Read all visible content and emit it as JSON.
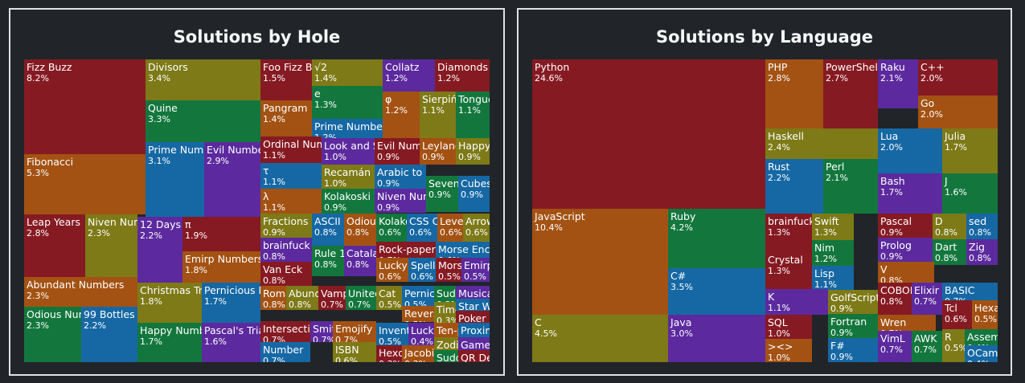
{
  "colors": {
    "red": "#861a22",
    "orange": "#a35213",
    "olive": "#7d7a17",
    "green": "#13773d",
    "blue": "#1668a4",
    "purple": "#5c2a9e"
  },
  "chart_data": [
    {
      "type": "treemap",
      "title": "Solutions by Hole",
      "items": [
        {
          "label": "Fizz Buzz",
          "value": 8.2,
          "pct": "8.2%",
          "color": "red"
        },
        {
          "label": "Fibonacci",
          "value": 5.3,
          "pct": "5.3%",
          "color": "orange"
        },
        {
          "label": "Leap Years",
          "value": 2.8,
          "pct": "2.8%",
          "color": "red"
        },
        {
          "label": "Niven Numbers",
          "value": 2.3,
          "pct": "2.3%",
          "color": "olive"
        },
        {
          "label": "Abundant Numbers",
          "value": 2.3,
          "pct": "2.3%",
          "color": "orange"
        },
        {
          "label": "Odious Numbers",
          "value": 2.3,
          "pct": "2.3%",
          "color": "green"
        },
        {
          "label": "99 Bottles",
          "value": 2.2,
          "pct": "2.2%",
          "color": "blue"
        },
        {
          "label": "Divisors",
          "value": 3.4,
          "pct": "3.4%",
          "color": "olive"
        },
        {
          "label": "Quine",
          "value": 3.3,
          "pct": "3.3%",
          "color": "green"
        },
        {
          "label": "Prime Numbers",
          "value": 3.1,
          "pct": "3.1%",
          "color": "blue"
        },
        {
          "label": "Evil Numbers",
          "value": 2.9,
          "pct": "2.9%",
          "color": "purple"
        },
        {
          "label": "12 Days",
          "value": 2.2,
          "pct": "2.2%",
          "color": "purple"
        },
        {
          "label": "π",
          "value": 1.9,
          "pct": "1.9%",
          "color": "red"
        },
        {
          "label": "Emirp Numbers",
          "value": 1.8,
          "pct": "1.8%",
          "color": "orange"
        },
        {
          "label": "Christmas Trees",
          "value": 1.8,
          "pct": "1.8%",
          "color": "olive"
        },
        {
          "label": "Pernicious Numbers",
          "value": 1.7,
          "pct": "1.7%",
          "color": "blue"
        },
        {
          "label": "Happy Numbers",
          "value": 1.7,
          "pct": "1.7%",
          "color": "green"
        },
        {
          "label": "Pascal's Triangle",
          "value": 1.6,
          "pct": "1.6%",
          "color": "purple"
        },
        {
          "label": "Foo Fizz Buzz",
          "value": 1.5,
          "pct": "1.5%",
          "color": "red"
        },
        {
          "label": "Pangram",
          "value": 1.4,
          "pct": "1.4%",
          "color": "orange"
        },
        {
          "label": "√2",
          "value": 1.4,
          "pct": "1.4%",
          "color": "olive"
        },
        {
          "label": "e",
          "value": 1.3,
          "pct": "1.3%",
          "color": "green"
        },
        {
          "label": "Prime Numbers",
          "value": 1.2,
          "pct": "1.2%",
          "color": "blue"
        },
        {
          "label": "Collatz",
          "value": 1.2,
          "pct": "1.2%",
          "color": "purple"
        },
        {
          "label": "Diamonds",
          "value": 1.2,
          "pct": "1.2%",
          "color": "red"
        },
        {
          "label": "φ",
          "value": 1.2,
          "pct": "1.2%",
          "color": "orange"
        },
        {
          "label": "Sierpiński",
          "value": 1.1,
          "pct": "1.1%",
          "color": "olive"
        },
        {
          "label": "Tongue-twisters",
          "value": 1.1,
          "pct": "1.1%",
          "color": "green"
        },
        {
          "label": "Ordinal Numbers",
          "value": 1.1,
          "pct": "1.1%",
          "color": "red"
        },
        {
          "label": "Look and Say",
          "value": 1.0,
          "pct": "1.0%",
          "color": "purple"
        },
        {
          "label": "Evil Numbers",
          "value": 0.9,
          "pct": "0.9%",
          "color": "red"
        },
        {
          "label": "Leyland",
          "value": 0.9,
          "pct": "0.9%",
          "color": "orange"
        },
        {
          "label": "Happy",
          "value": 0.9,
          "pct": "0.9%",
          "color": "olive"
        },
        {
          "label": "τ",
          "value": 1.1,
          "pct": "1.1%",
          "color": "blue"
        },
        {
          "label": "Recamán",
          "value": 1.0,
          "pct": "1.0%",
          "color": "olive"
        },
        {
          "label": "Arabic to Roman",
          "value": 0.9,
          "pct": "0.9%",
          "color": "blue"
        },
        {
          "label": "Seven",
          "value": 0.9,
          "pct": "0.9%",
          "color": "green"
        },
        {
          "label": "Cubes",
          "value": 0.9,
          "pct": "0.9%",
          "color": "blue"
        },
        {
          "label": "λ",
          "value": 1.1,
          "pct": "1.1%",
          "color": "orange"
        },
        {
          "label": "Kolakoski",
          "value": 0.9,
          "pct": "0.9%",
          "color": "green"
        },
        {
          "label": "Niven Numbers",
          "value": 0.9,
          "pct": "0.9%",
          "color": "purple"
        },
        {
          "label": "Fractions",
          "value": 0.9,
          "pct": "0.9%",
          "color": "olive"
        },
        {
          "label": "ASCII",
          "value": 0.8,
          "pct": "0.8%",
          "color": "blue"
        },
        {
          "label": "Odious",
          "value": 0.8,
          "pct": "0.8%",
          "color": "orange"
        },
        {
          "label": "Kolakoski",
          "value": 0.6,
          "pct": "0.6%",
          "color": "green"
        },
        {
          "label": "CSS Colors",
          "value": 0.6,
          "pct": "0.6%",
          "color": "blue"
        },
        {
          "label": "Levenshtein",
          "value": 0.6,
          "pct": "0.6%",
          "color": "orange"
        },
        {
          "label": "Arrows",
          "value": 0.6,
          "pct": "0.6%",
          "color": "olive"
        },
        {
          "label": "brainfuck",
          "value": 0.8,
          "pct": "0.8%",
          "color": "purple"
        },
        {
          "label": "Rule 110",
          "value": 0.8,
          "pct": "0.8%",
          "color": "green"
        },
        {
          "label": "Catalan",
          "value": 0.8,
          "pct": "0.8%",
          "color": "purple"
        },
        {
          "label": "Rock-paper",
          "value": 0.7,
          "pct": "0.7%",
          "color": "red"
        },
        {
          "label": "Morse Encoder",
          "value": 0.6,
          "pct": "0.6%",
          "color": "blue"
        },
        {
          "label": "Van Eck",
          "value": 0.8,
          "pct": "0.8%",
          "color": "red"
        },
        {
          "label": "Lucky",
          "value": 0.6,
          "pct": "0.6%",
          "color": "orange"
        },
        {
          "label": "Spelling",
          "value": 0.6,
          "pct": "0.6%",
          "color": "blue"
        },
        {
          "label": "Morse",
          "value": 0.5,
          "pct": "0.5%",
          "color": "red"
        },
        {
          "label": "Emirp",
          "value": 0.5,
          "pct": "0.5%",
          "color": "purple"
        },
        {
          "label": "Roman",
          "value": 0.8,
          "pct": "0.8%",
          "color": "orange"
        },
        {
          "label": "Abundant",
          "value": 0.8,
          "pct": "0.8%",
          "color": "olive"
        },
        {
          "label": "Vampire",
          "value": 0.7,
          "pct": "0.7%",
          "color": "red"
        },
        {
          "label": "United",
          "value": 0.7,
          "pct": "0.7%",
          "color": "green"
        },
        {
          "label": "Cat",
          "value": 0.5,
          "pct": "0.5%",
          "color": "olive"
        },
        {
          "label": "Pernicious",
          "value": 0.5,
          "pct": "0.5%",
          "color": "blue"
        },
        {
          "label": "Sudoku",
          "value": 0.3,
          "pct": "0.3%",
          "color": "green"
        },
        {
          "label": "Musical",
          "value": 0.3,
          "pct": "0.3%",
          "color": "purple"
        },
        {
          "label": "Star Wars",
          "value": 0.3,
          "pct": "0.3%",
          "color": "blue"
        },
        {
          "label": "Reverse",
          "value": 0.5,
          "pct": "0.5%",
          "color": "orange"
        },
        {
          "label": "Time",
          "value": 0.3,
          "pct": "0.3%",
          "color": "olive"
        },
        {
          "label": "Poker",
          "value": 0.3,
          "pct": "0.3%",
          "color": "red"
        },
        {
          "label": "Intersection",
          "value": 0.7,
          "pct": "0.7%",
          "color": "red"
        },
        {
          "label": "Smith",
          "value": 0.7,
          "pct": "0.7%",
          "color": "purple"
        },
        {
          "label": "Emojify",
          "value": 0.7,
          "pct": "0.7%",
          "color": "orange"
        },
        {
          "label": "Inventory",
          "value": 0.5,
          "pct": "0.5%",
          "color": "blue"
        },
        {
          "label": "Lucky",
          "value": 0.4,
          "pct": "0.4%",
          "color": "purple"
        },
        {
          "label": "Ten-pin",
          "value": 0.3,
          "pct": "0.3%",
          "color": "orange"
        },
        {
          "label": "Proximity",
          "value": 0.3,
          "pct": "0.3%",
          "color": "blue"
        },
        {
          "label": "Number",
          "value": 0.7,
          "pct": "0.7%",
          "color": "blue"
        },
        {
          "label": "ISBN",
          "value": 0.6,
          "pct": "0.6%",
          "color": "olive"
        },
        {
          "label": "Hexdump",
          "value": 0.3,
          "pct": "0.3%",
          "color": "red"
        },
        {
          "label": "Jacobi",
          "value": 0.3,
          "pct": "0.3%",
          "color": "orange"
        },
        {
          "label": "Zodiac",
          "value": 0.3,
          "pct": "0.3%",
          "color": "olive"
        },
        {
          "label": "Sudoku",
          "value": 0.3,
          "pct": "0.3%",
          "color": "green"
        },
        {
          "label": "Game",
          "value": 0.3,
          "pct": "0.3%",
          "color": "purple"
        },
        {
          "label": "QR Decoder",
          "value": 0.3,
          "pct": "0.3%",
          "color": "red"
        }
      ]
    },
    {
      "type": "treemap",
      "title": "Solutions by Language",
      "items": [
        {
          "label": "Python",
          "value": 24.6,
          "pct": "24.6%",
          "color": "red"
        },
        {
          "label": "JavaScript",
          "value": 10.4,
          "pct": "10.4%",
          "color": "orange"
        },
        {
          "label": "C",
          "value": 4.5,
          "pct": "4.5%",
          "color": "olive"
        },
        {
          "label": "Ruby",
          "value": 4.2,
          "pct": "4.2%",
          "color": "green"
        },
        {
          "label": "C#",
          "value": 3.5,
          "pct": "3.5%",
          "color": "blue"
        },
        {
          "label": "Java",
          "value": 3.0,
          "pct": "3.0%",
          "color": "purple"
        },
        {
          "label": "PHP",
          "value": 2.8,
          "pct": "2.8%",
          "color": "orange"
        },
        {
          "label": "PowerShell",
          "value": 2.7,
          "pct": "2.7%",
          "color": "red"
        },
        {
          "label": "Raku",
          "value": 2.1,
          "pct": "2.1%",
          "color": "purple"
        },
        {
          "label": "C++",
          "value": 2.0,
          "pct": "2.0%",
          "color": "red"
        },
        {
          "label": "Go",
          "value": 2.0,
          "pct": "2.0%",
          "color": "orange"
        },
        {
          "label": "Haskell",
          "value": 2.4,
          "pct": "2.4%",
          "color": "olive"
        },
        {
          "label": "Rust",
          "value": 2.2,
          "pct": "2.2%",
          "color": "blue"
        },
        {
          "label": "Perl",
          "value": 2.1,
          "pct": "2.1%",
          "color": "green"
        },
        {
          "label": "Lua",
          "value": 2.0,
          "pct": "2.0%",
          "color": "blue"
        },
        {
          "label": "Julia",
          "value": 1.7,
          "pct": "1.7%",
          "color": "olive"
        },
        {
          "label": "Bash",
          "value": 1.7,
          "pct": "1.7%",
          "color": "purple"
        },
        {
          "label": "J",
          "value": 1.6,
          "pct": "1.6%",
          "color": "green"
        },
        {
          "label": "brainfuck",
          "value": 1.3,
          "pct": "1.3%",
          "color": "red"
        },
        {
          "label": "Swift",
          "value": 1.3,
          "pct": "1.3%",
          "color": "olive"
        },
        {
          "label": "Crystal",
          "value": 1.3,
          "pct": "1.3%",
          "color": "red"
        },
        {
          "label": "Nim",
          "value": 1.2,
          "pct": "1.2%",
          "color": "green"
        },
        {
          "label": "Lisp",
          "value": 1.1,
          "pct": "1.1%",
          "color": "blue"
        },
        {
          "label": "K",
          "value": 1.1,
          "pct": "1.1%",
          "color": "purple"
        },
        {
          "label": "GolfScript",
          "value": 0.9,
          "pct": "0.9%",
          "color": "olive"
        },
        {
          "label": "SQL",
          "value": 1.0,
          "pct": "1.0%",
          "color": "red"
        },
        {
          "label": "Fortran",
          "value": 0.9,
          "pct": "0.9%",
          "color": "green"
        },
        {
          "label": "><>",
          "value": 1.0,
          "pct": "1.0%",
          "color": "orange"
        },
        {
          "label": "F#",
          "value": 0.9,
          "pct": "0.9%",
          "color": "blue"
        },
        {
          "label": "Pascal",
          "value": 0.9,
          "pct": "0.9%",
          "color": "red"
        },
        {
          "label": "D",
          "value": 0.8,
          "pct": "0.8%",
          "color": "olive"
        },
        {
          "label": "sed",
          "value": 0.8,
          "pct": "0.8%",
          "color": "blue"
        },
        {
          "label": "Prolog",
          "value": 0.9,
          "pct": "0.9%",
          "color": "purple"
        },
        {
          "label": "Dart",
          "value": 0.8,
          "pct": "0.8%",
          "color": "green"
        },
        {
          "label": "Zig",
          "value": 0.8,
          "pct": "0.8%",
          "color": "purple"
        },
        {
          "label": "V",
          "value": 0.8,
          "pct": "0.8%",
          "color": "orange"
        },
        {
          "label": "BASIC",
          "value": 0.7,
          "pct": "0.7%",
          "color": "blue"
        },
        {
          "label": "COBOL",
          "value": 0.8,
          "pct": "0.8%",
          "color": "red"
        },
        {
          "label": "Elixir",
          "value": 0.7,
          "pct": "0.7%",
          "color": "purple"
        },
        {
          "label": "Tcl",
          "value": 0.6,
          "pct": "0.6%",
          "color": "red"
        },
        {
          "label": "Hexagony",
          "value": 0.5,
          "pct": "0.5%",
          "color": "orange"
        },
        {
          "label": "Wren",
          "value": 0.7,
          "pct": "0.7%",
          "color": "orange"
        },
        {
          "label": "VimL",
          "value": 0.7,
          "pct": "0.7%",
          "color": "purple"
        },
        {
          "label": "AWK",
          "value": 0.7,
          "pct": "0.7%",
          "color": "green"
        },
        {
          "label": "R",
          "value": 0.5,
          "pct": "0.5%",
          "color": "olive"
        },
        {
          "label": "Assembly",
          "value": 0.4,
          "pct": "0.4%",
          "color": "green"
        },
        {
          "label": "OCaml",
          "value": 0.4,
          "pct": "0.4%",
          "color": "blue"
        }
      ]
    }
  ]
}
